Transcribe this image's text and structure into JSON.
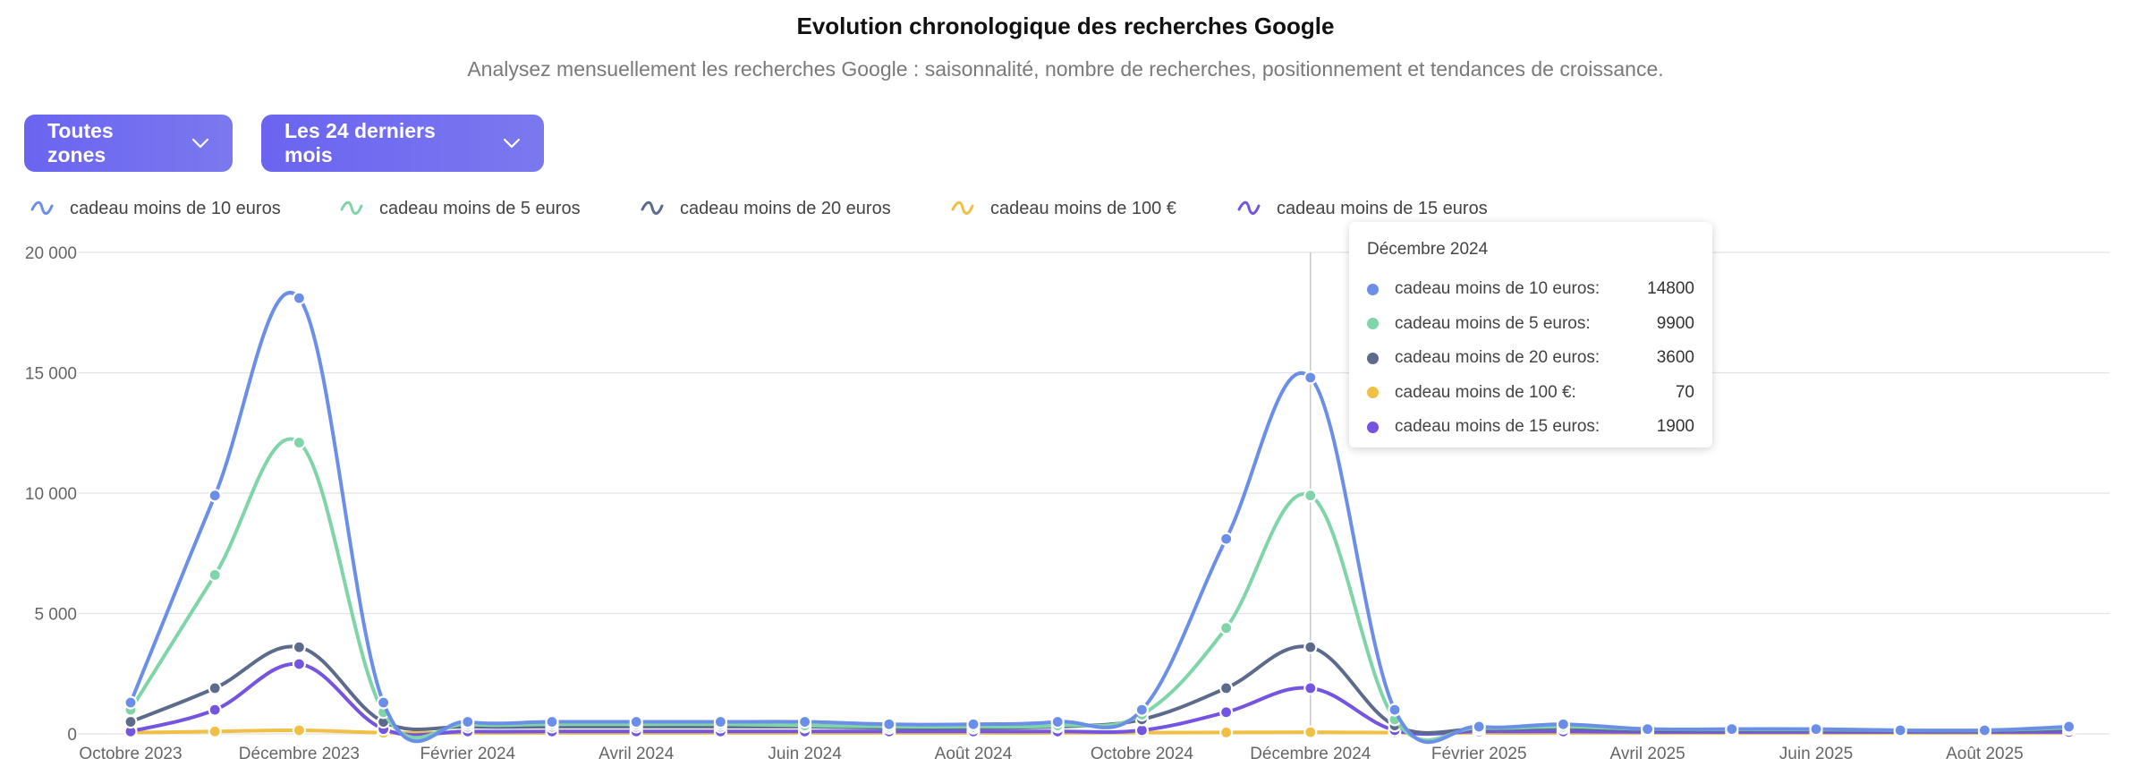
{
  "header": {
    "title": "Evolution chronologique des recherches Google",
    "subtitle": "Analysez mensuellement les recherches Google : saisonnalité, nombre de recherches, positionnement et tendances de croissance."
  },
  "filters": {
    "zone_label": "Toutes zones",
    "period_label": "Les 24 derniers mois"
  },
  "icons": {
    "dropdown": "chevron-down-icon",
    "legend": "wave-icon"
  },
  "chart_data": {
    "type": "line",
    "x": [
      "2023-10",
      "2023-11",
      "2023-12",
      "2024-01",
      "2024-02",
      "2024-03",
      "2024-04",
      "2024-05",
      "2024-06",
      "2024-07",
      "2024-08",
      "2024-09",
      "2024-10",
      "2024-11",
      "2024-12",
      "2025-01",
      "2025-02",
      "2025-03",
      "2025-04",
      "2025-05",
      "2025-06",
      "2025-07",
      "2025-08",
      "2025-09"
    ],
    "x_tick_labels": [
      "Octobre 2023",
      "Décembre 2023",
      "Février 2024",
      "Avril 2024",
      "Juin 2024",
      "Août 2024",
      "Octobre 2024",
      "Décembre 2024",
      "Février 2025",
      "Avril 2025",
      "Juin 2025",
      "Août 2025"
    ],
    "y_ticks": [
      "0",
      "5 000",
      "10 000",
      "15 000",
      "20 000"
    ],
    "ylim": [
      0,
      20000
    ],
    "grid": true,
    "legend_position": "top-left",
    "series": [
      {
        "name": "cadeau moins de 10 euros",
        "color": "#6b8ee8",
        "values": [
          1300,
          9900,
          18100,
          1300,
          500,
          500,
          500,
          500,
          500,
          400,
          400,
          500,
          1000,
          8100,
          14800,
          1000,
          300,
          400,
          200,
          200,
          200,
          150,
          150,
          300
        ]
      },
      {
        "name": "cadeau moins de 5 euros",
        "color": "#7fd4a8",
        "values": [
          1000,
          6600,
          12100,
          900,
          400,
          400,
          400,
          400,
          350,
          300,
          300,
          350,
          800,
          4400,
          9900,
          600,
          250,
          300,
          200,
          180,
          180,
          150,
          150,
          250
        ]
      },
      {
        "name": "cadeau moins de 20 euros",
        "color": "#5c6a8c",
        "values": [
          500,
          1900,
          3600,
          500,
          300,
          300,
          300,
          300,
          300,
          250,
          250,
          300,
          600,
          1900,
          3600,
          350,
          200,
          250,
          150,
          150,
          150,
          120,
          120,
          200
        ]
      },
      {
        "name": "cadeau moins de 100 €",
        "color": "#f0c045",
        "values": [
          50,
          100,
          150,
          50,
          40,
          40,
          40,
          40,
          40,
          40,
          40,
          40,
          50,
          60,
          70,
          50,
          40,
          40,
          40,
          40,
          40,
          40,
          40,
          40
        ]
      },
      {
        "name": "cadeau moins de 15 euros",
        "color": "#7454e0",
        "values": [
          100,
          1000,
          2900,
          200,
          100,
          100,
          100,
          100,
          100,
          100,
          100,
          100,
          150,
          900,
          1900,
          150,
          100,
          100,
          80,
          80,
          80,
          80,
          80,
          80
        ]
      }
    ],
    "tooltip": {
      "title": "Décembre 2024",
      "rows": [
        {
          "name": "cadeau moins de 10 euros:",
          "value": "14800",
          "color": "#6b8ee8"
        },
        {
          "name": "cadeau moins de 5 euros:",
          "value": "9900",
          "color": "#7fd4a8"
        },
        {
          "name": "cadeau moins de 20 euros:",
          "value": "3600",
          "color": "#5c6a8c"
        },
        {
          "name": "cadeau moins de 100 €:",
          "value": "70",
          "color": "#f0c045"
        },
        {
          "name": "cadeau moins de 15 euros:",
          "value": "1900",
          "color": "#7454e0"
        }
      ]
    }
  }
}
